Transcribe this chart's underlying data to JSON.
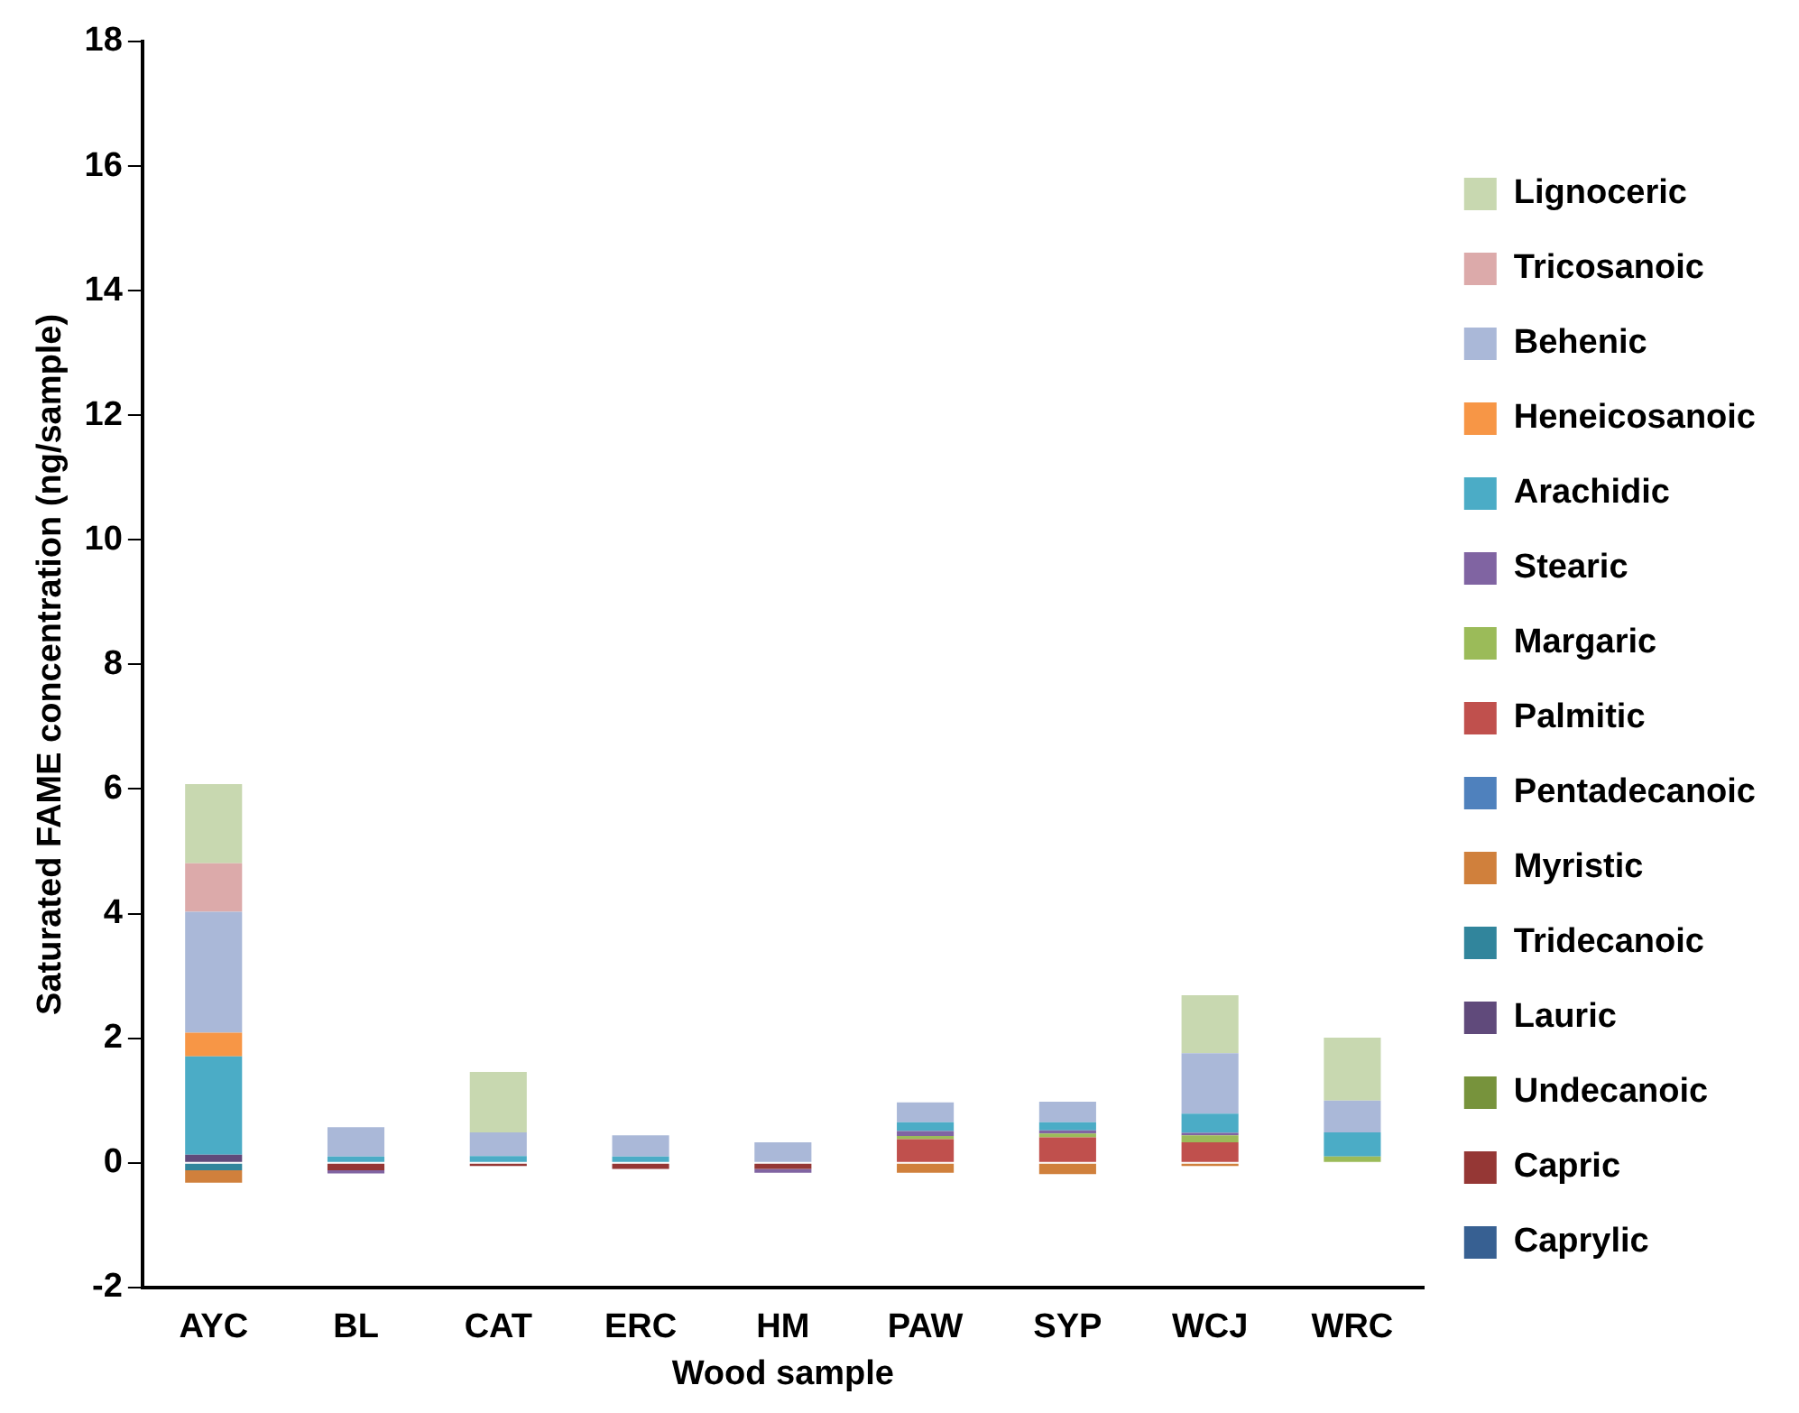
{
  "chart_data": {
    "type": "bar",
    "stacked": true,
    "xlabel": "Wood sample",
    "ylabel": "Saturated FAME concentration (ng/sample)",
    "categories": [
      "AYC",
      "BL",
      "CAT",
      "ERC",
      "HM",
      "PAW",
      "SYP",
      "WCJ",
      "WRC"
    ],
    "ylim": [
      -2,
      18
    ],
    "yticks": [
      -2,
      0,
      2,
      4,
      6,
      8,
      10,
      12,
      14,
      16,
      18
    ],
    "grid": false,
    "legend": "right",
    "series": [
      {
        "name": "Caprylic",
        "color": "#376092",
        "values": [
          0,
          0,
          0,
          0,
          0,
          0,
          0,
          0,
          0
        ]
      },
      {
        "name": "Capric",
        "color": "#953735",
        "values": [
          0,
          -0.12,
          -0.05,
          -0.1,
          -0.1,
          0,
          0,
          0,
          0
        ]
      },
      {
        "name": "Undecanoic",
        "color": "#77933c",
        "values": [
          0,
          0,
          0,
          0,
          0,
          0,
          0,
          0,
          0
        ]
      },
      {
        "name": "Lauric",
        "color": "#604a7b",
        "values": [
          0.13,
          0,
          0,
          0,
          0,
          0,
          0,
          0,
          0
        ]
      },
      {
        "name": "Tridecanoic",
        "color": "#31859c",
        "values": [
          -0.12,
          0,
          0,
          0,
          0,
          0,
          0,
          0,
          0
        ]
      },
      {
        "name": "Myristic",
        "color": "#d0803c",
        "values": [
          -0.2,
          0,
          0,
          0,
          0,
          -0.16,
          -0.18,
          -0.05,
          0
        ]
      },
      {
        "name": "Pentadecanoic",
        "color": "#4f81bd",
        "values": [
          0,
          0,
          0,
          0,
          0,
          0,
          0,
          0,
          0
        ]
      },
      {
        "name": "Palmitic",
        "color": "#c0504d",
        "values": [
          0,
          0,
          0,
          0,
          0,
          0.38,
          0.41,
          0.33,
          0
        ]
      },
      {
        "name": "Margaric",
        "color": "#9bbb59",
        "values": [
          0,
          0,
          0,
          0,
          0,
          0.05,
          0.06,
          0.11,
          0.1
        ]
      },
      {
        "name": "Stearic",
        "color": "#8064a2",
        "values": [
          0,
          -0.05,
          0,
          0,
          -0.06,
          0.08,
          0.05,
          0.04,
          0
        ]
      },
      {
        "name": "Arachidic",
        "color": "#4bacc6",
        "values": [
          1.58,
          0.1,
          0.11,
          0.1,
          0,
          0.14,
          0.13,
          0.31,
          0.39
        ]
      },
      {
        "name": "Heneicosanoic",
        "color": "#f79646",
        "values": [
          0.38,
          0,
          0,
          0,
          0,
          0,
          0,
          0,
          0
        ]
      },
      {
        "name": "Behenic",
        "color": "#aab8d8",
        "values": [
          1.94,
          0.47,
          0.38,
          0.34,
          0.33,
          0.32,
          0.33,
          0.97,
          0.51
        ]
      },
      {
        "name": "Tricosanoic",
        "color": "#dcaaaa",
        "values": [
          0.78,
          0,
          0,
          0,
          0,
          0,
          0,
          0,
          0
        ]
      },
      {
        "name": "Lignoceric",
        "color": "#c8d8b0",
        "values": [
          1.27,
          0,
          0.97,
          0,
          0,
          0,
          0,
          0.93,
          1.01
        ]
      }
    ]
  }
}
